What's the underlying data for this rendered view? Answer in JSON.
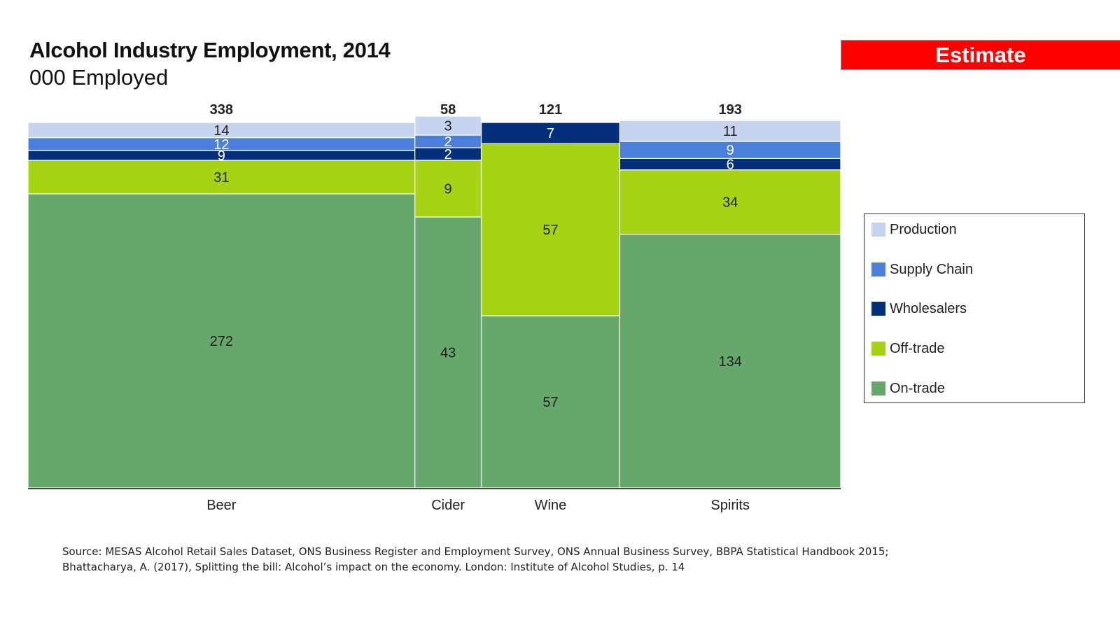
{
  "badge": {
    "label": "Estimate",
    "color": "#ff0000"
  },
  "source": {
    "line1": "Source: MESAS Alcohol Retail Sales Dataset, ONS Business Register and Employment Survey, ONS Annual Business Survey, BBPA Statistical Handbook 2015;",
    "line2": "Bhattacharya, A. (2017), Splitting the bill: Alcohol’s impact on the economy. London: Institute of Alcohol Studies, p. 14"
  },
  "chart_data": {
    "type": "bar",
    "variant": "marimekko (100% stacked, variable-width columns)",
    "title": "Alcohol Industry Employment, 2014",
    "subtitle": "000 Employed",
    "xlabel": "",
    "ylabel": "",
    "grid": false,
    "legend_position": "right",
    "categories": [
      "Beer",
      "Cider",
      "Wine",
      "Spirits"
    ],
    "totals": [
      338,
      58,
      121,
      193
    ],
    "series": [
      {
        "name": "On-trade",
        "color": "#66a86b",
        "label_color": "#222222",
        "values": [
          272,
          43,
          57,
          134
        ]
      },
      {
        "name": "Off-trade",
        "color": "#a6d414",
        "label_color": "#222222",
        "values": [
          31,
          9,
          57,
          34
        ]
      },
      {
        "name": "Wholesalers",
        "color": "#042f7a",
        "label_color": "#ffffff",
        "values": [
          9,
          2,
          7,
          6
        ]
      },
      {
        "name": "Supply Chain",
        "color": "#4a7fdc",
        "label_color": "#ffffff",
        "values": [
          12,
          2,
          0,
          9
        ]
      },
      {
        "name": "Production",
        "color": "#c6d4ef",
        "label_color": "#222222",
        "values": [
          14,
          3,
          0,
          11
        ]
      }
    ],
    "legend_order": [
      "Production",
      "Supply Chain",
      "Wholesalers",
      "Off-trade",
      "On-trade"
    ]
  }
}
